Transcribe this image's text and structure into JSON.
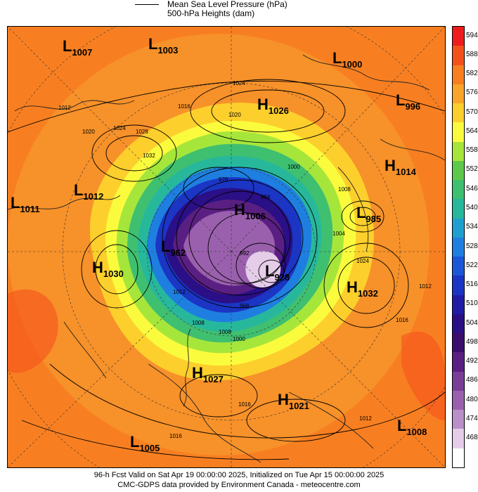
{
  "legend": {
    "line1": "Mean Sea Level Pressure (hPa)",
    "line2": "500-hPa Heights (dam)"
  },
  "colorbar": [
    {
      "label": "594",
      "color": "#ee1c1c"
    },
    {
      "label": "588",
      "color": "#f5511c"
    },
    {
      "label": "582",
      "color": "#f87f21"
    },
    {
      "label": "576",
      "color": "#fba42a"
    },
    {
      "label": "570",
      "color": "#fdcf2c"
    },
    {
      "label": "564",
      "color": "#fbfb3e"
    },
    {
      "label": "558",
      "color": "#a6e63b"
    },
    {
      "label": "552",
      "color": "#5dc94a"
    },
    {
      "label": "546",
      "color": "#3fbf70"
    },
    {
      "label": "540",
      "color": "#27b89c"
    },
    {
      "label": "534",
      "color": "#1f9fd0"
    },
    {
      "label": "528",
      "color": "#1e7fe0"
    },
    {
      "label": "522",
      "color": "#1a58d8"
    },
    {
      "label": "516",
      "color": "#1b35c4"
    },
    {
      "label": "510",
      "color": "#211ca6"
    },
    {
      "label": "504",
      "color": "#2a0f86"
    },
    {
      "label": "498",
      "color": "#3b0d6f"
    },
    {
      "label": "492",
      "color": "#5a1f82"
    },
    {
      "label": "486",
      "color": "#7a3d97"
    },
    {
      "label": "480",
      "color": "#9a60ad"
    },
    {
      "label": "474",
      "color": "#bb8fc7"
    },
    {
      "label": "468",
      "color": "#e5cde9"
    }
  ],
  "pressure_systems": [
    {
      "type": "L",
      "value": "1007"
    },
    {
      "type": "L",
      "value": "1003"
    },
    {
      "type": "L",
      "value": "1000"
    },
    {
      "type": "H",
      "value": "1026"
    },
    {
      "type": "L",
      "value": "996"
    },
    {
      "type": "H",
      "value": "1014"
    },
    {
      "type": "L",
      "value": "1012"
    },
    {
      "type": "L",
      "value": "1011"
    },
    {
      "type": "H",
      "value": "1006"
    },
    {
      "type": "L",
      "value": "985"
    },
    {
      "type": "L",
      "value": "962"
    },
    {
      "type": "H",
      "value": "1030"
    },
    {
      "type": "L",
      "value": "928"
    },
    {
      "type": "H",
      "value": "1032"
    },
    {
      "type": "H",
      "value": "1027"
    },
    {
      "type": "H",
      "value": "1021"
    },
    {
      "type": "L",
      "value": "1008"
    },
    {
      "type": "L",
      "value": "1005"
    }
  ],
  "isobar_labels": [
    "1012",
    "1020",
    "1024",
    "1028",
    "1032",
    "1016",
    "1020",
    "1024",
    "1008",
    "1004",
    "1000",
    "1024",
    "1012",
    "1016",
    "1012",
    "1016",
    "1008",
    "1016",
    "1008",
    "1000",
    "992",
    "984",
    "976",
    "968",
    "1012"
  ],
  "footer": {
    "line1": "96-h Fcst Valid on Sat Apr 19 00:00:00 2025, Initialized on Tue Apr 15 00:00:00 2025",
    "line2": "CMC-GDPS data provided by Environment Canada - meteocentre.com"
  }
}
